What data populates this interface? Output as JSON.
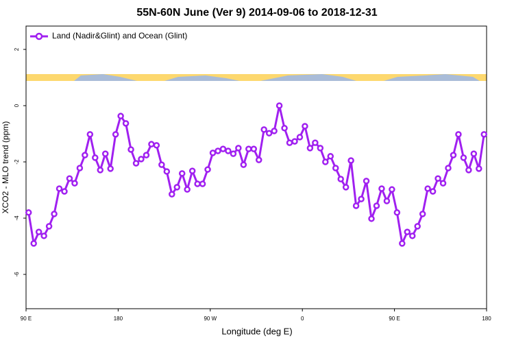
{
  "chart_data": {
    "type": "line",
    "title": "55N-60N June (Ver 9)   2014-09-06 to 2018-12-31",
    "x_label": "Longitude (deg E)",
    "y_label": "XCO2 - MLO trend (ppm)",
    "xlim": [
      90,
      540
    ],
    "ylim": [
      -7.22,
      2.83
    ],
    "xticks": [
      {
        "value": 90,
        "label": "90 E"
      },
      180,
      {
        "value": 270,
        "label": "90 W"
      },
      {
        "value": 360,
        "label": "0"
      },
      {
        "value": 450,
        "label": "90 E"
      },
      {
        "value": 540,
        "label": "180"
      }
    ],
    "yticks": [
      2,
      0,
      -2,
      -4,
      -6
    ],
    "legend_position": "top-left",
    "series": [
      {
        "name": "Land (Nadir&Glint) and Ocean (Glint)",
        "color": "#a020f0",
        "x": [
          92.5,
          97.5,
          102.5,
          107.5,
          112.5,
          117.5,
          122.5,
          127.5,
          132.5,
          137.5,
          142.5,
          147.5,
          152.5,
          157.5,
          162.5,
          167.5,
          172.5,
          177.5,
          182.5,
          187.5,
          192.5,
          197.5,
          202.5,
          207.5,
          212.5,
          217.5,
          222.5,
          227.5,
          232.5,
          237.5,
          242.5,
          247.5,
          252.5,
          257.5,
          262.5,
          267.5,
          272.5,
          277.5,
          282.5,
          287.5,
          292.5,
          297.5,
          302.5,
          307.5,
          312.5,
          317.5,
          322.5,
          327.5,
          332.5,
          337.5,
          342.5,
          347.5,
          352.5,
          357.5,
          362.5,
          367.5,
          372.5,
          377.5,
          382.5,
          387.5,
          392.5,
          397.5,
          402.5,
          407.5,
          412.5,
          417.5,
          422.5,
          427.5,
          432.5,
          437.5,
          442.5,
          447.5,
          452.5,
          457.5,
          462.5,
          467.5,
          472.5,
          477.5,
          482.5,
          487.5,
          492.5,
          497.5,
          502.5,
          507.5,
          512.5,
          517.5,
          522.5,
          527.5,
          532.5,
          537.5
        ],
        "values": [
          -3.8,
          -4.9,
          -4.49,
          -4.63,
          -4.29,
          -3.85,
          -2.95,
          -3.05,
          -2.59,
          -2.76,
          -2.22,
          -1.76,
          -1.02,
          -1.85,
          -2.29,
          -1.71,
          -2.24,
          -1.02,
          -0.37,
          -0.63,
          -1.56,
          -2.05,
          -1.9,
          -1.76,
          -1.37,
          -1.41,
          -2.1,
          -2.34,
          -3.15,
          -2.9,
          -2.41,
          -2.98,
          -2.32,
          -2.78,
          -2.78,
          -2.27,
          -1.68,
          -1.61,
          -1.54,
          -1.61,
          -1.71,
          -1.51,
          -2.1,
          -1.54,
          -1.54,
          -1.93,
          -0.85,
          -0.98,
          -0.9,
          0.0,
          -0.8,
          -1.32,
          -1.27,
          -1.12,
          -0.73,
          -1.51,
          -1.32,
          -1.51,
          -2.0,
          -1.8,
          -2.22,
          -2.61,
          -2.9,
          -1.95,
          -3.56,
          -3.32,
          -2.68,
          -4.02,
          -3.56,
          -2.95,
          -3.39,
          -2.98,
          -3.8,
          -4.9,
          -4.49,
          -4.63,
          -4.29,
          -3.85,
          -2.95,
          -3.05,
          -2.59,
          -2.76,
          -2.22,
          -1.76,
          -1.02,
          -1.85,
          -2.29,
          -1.71,
          -2.24,
          -1.02
        ]
      }
    ]
  }
}
